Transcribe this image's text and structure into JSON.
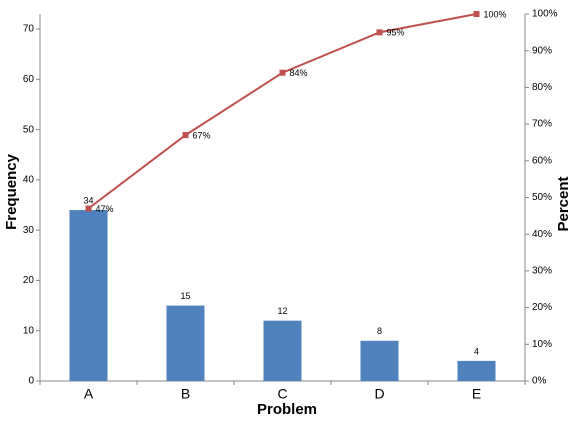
{
  "chart_data": {
    "type": "bar",
    "x_label": "Problem",
    "y_label": "Frequency",
    "y2_label": "Percent",
    "categories": [
      "A",
      "B",
      "C",
      "D",
      "E"
    ],
    "series": [
      {
        "type": "bar",
        "color": "#4f81bd",
        "values": [
          34,
          15,
          12,
          8,
          4
        ]
      },
      {
        "type": "line",
        "axis": "y2",
        "color": "#c0504d",
        "values": [
          47,
          67,
          84,
          95,
          100
        ],
        "value_labels": [
          "47%",
          "67%",
          "84%",
          "95%",
          "100%"
        ]
      }
    ],
    "ylim": [
      0,
      73
    ],
    "yticks": [
      0,
      10,
      20,
      30,
      40,
      50,
      60,
      70
    ],
    "y2lim": [
      0,
      100
    ],
    "y2ticks": [
      {
        "value": 0,
        "label": "0%"
      },
      {
        "value": 10,
        "label": "10%"
      },
      {
        "value": 20,
        "label": "20%"
      },
      {
        "value": 30,
        "label": "30%"
      },
      {
        "value": 40,
        "label": "40%"
      },
      {
        "value": 50,
        "label": "50%"
      },
      {
        "value": 60,
        "label": "60%"
      },
      {
        "value": 70,
        "label": "70%"
      },
      {
        "value": 80,
        "label": "80%"
      },
      {
        "value": 90,
        "label": "90%"
      },
      {
        "value": 100,
        "label": "100%"
      }
    ],
    "grid": false
  }
}
